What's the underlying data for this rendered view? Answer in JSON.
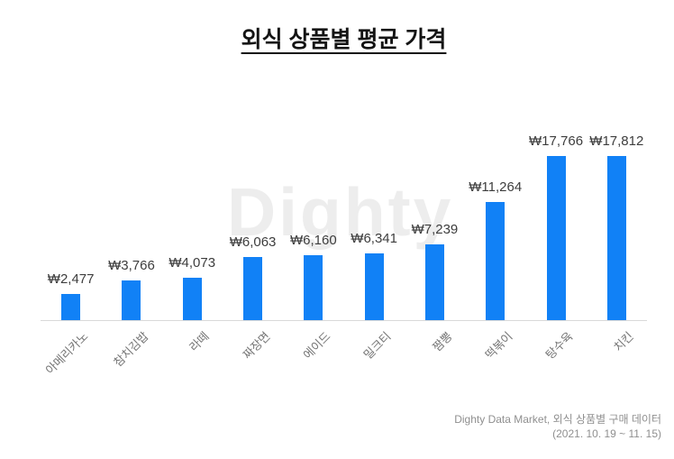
{
  "title": "외식 상품별 평균 가격",
  "watermark": "Dighty",
  "source": {
    "line1": "Dighty Data Market, 외식 상품별 구매 데이터",
    "line2": "(2021. 10. 19 ~ 11. 15)"
  },
  "colors": {
    "bar": "#1181f6",
    "axis_line": "#d9d9d9",
    "value_label": "#3d3d3d",
    "category_label": "#757575",
    "watermark": "#ededed",
    "source_text": "#8f8f8f",
    "title_text": "#141414"
  },
  "chart_data": {
    "type": "bar",
    "title": "외식 상품별 평균 가격",
    "categories": [
      "아메리카노",
      "참치김밥",
      "라떼",
      "짜장면",
      "에이드",
      "밀크티",
      "짬뽕",
      "떡볶이",
      "탕수육",
      "치킨"
    ],
    "values": [
      2477,
      3766,
      4073,
      6063,
      6160,
      6341,
      7239,
      11264,
      17766,
      17812
    ],
    "value_labels": [
      "₩2,477",
      "₩3,766",
      "₩4,073",
      "₩6,063",
      "₩6,160",
      "₩6,341",
      "₩7,239",
      "₩11,264",
      "₩17,766",
      "₩17,812"
    ],
    "xlabel": "",
    "ylabel": "",
    "ylim": [
      0,
      17812
    ],
    "grid": false,
    "legend": false,
    "bar_color": "#1181f6",
    "category_label_rotation_deg": 45,
    "source": "Dighty Data Market, 외식 상품별 구매 데이터 (2021. 10. 19 ~ 11. 15)"
  }
}
